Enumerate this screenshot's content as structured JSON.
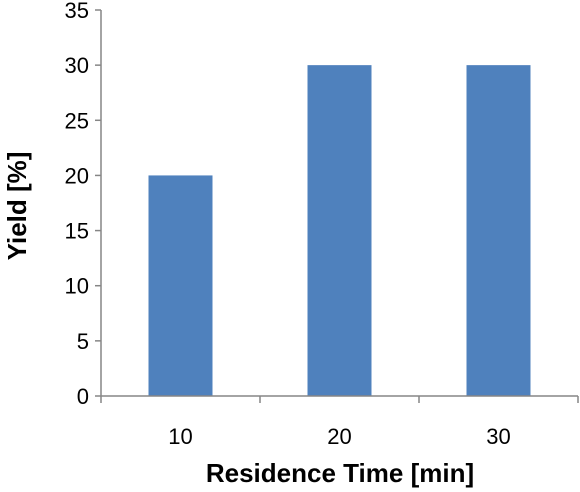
{
  "chart_data": {
    "type": "bar",
    "categories": [
      "10",
      "20",
      "30"
    ],
    "values": [
      20,
      30,
      30
    ],
    "title": "",
    "xlabel": "Residence Time [min]",
    "ylabel": "Yield [%]",
    "ylim": [
      0,
      35
    ],
    "yticks": [
      "0",
      "5",
      "10",
      "15",
      "20",
      "25",
      "30",
      "35"
    ],
    "grid": false,
    "legend": "none",
    "bar_color": "#4f81bd"
  }
}
